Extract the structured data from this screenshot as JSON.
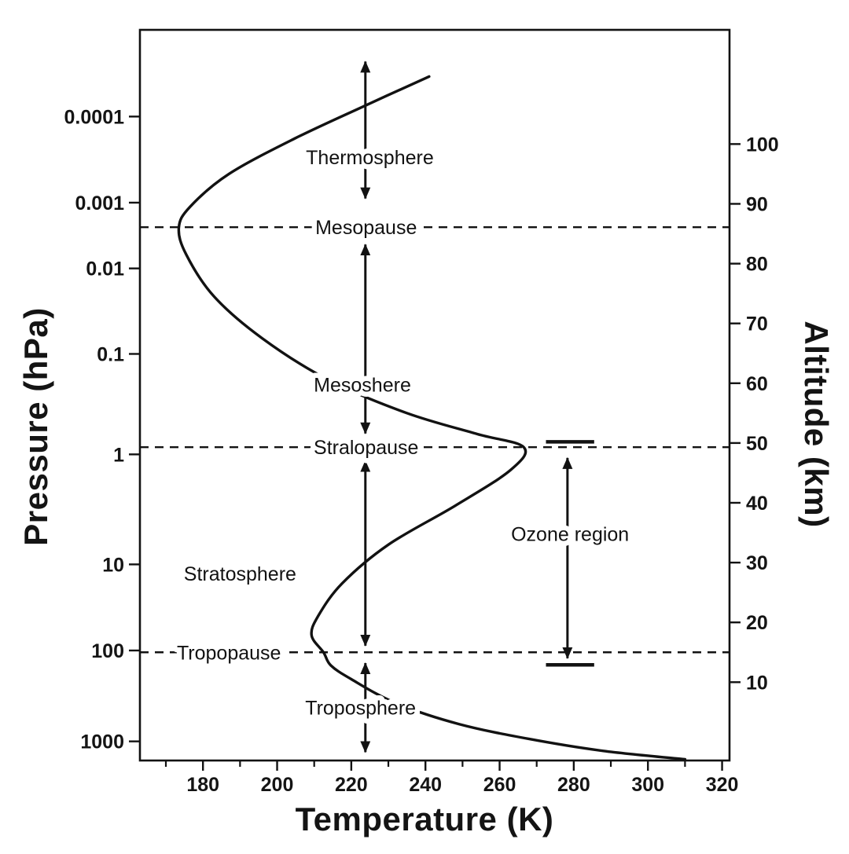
{
  "chart_data": {
    "type": "line",
    "title": "",
    "xlabel": "Temperature (K)",
    "ylabel_left": "Pressure (hPa)",
    "ylabel_right": "Altitude (km)",
    "xlim": [
      163,
      322
    ],
    "altitude_lim_km": [
      -3.1,
      119.1
    ],
    "grid": false,
    "x_ticks": [
      180,
      200,
      220,
      240,
      260,
      280,
      300,
      320
    ],
    "x_minor_ticks": [
      170,
      190,
      210,
      230,
      250,
      270,
      290,
      310
    ],
    "altitude_ticks_km": [
      10,
      20,
      30,
      40,
      50,
      60,
      70,
      80,
      90,
      100
    ],
    "pressure_ticks": [
      {
        "label": "0.0001",
        "altitude_km": 104.6
      },
      {
        "label": "0.001",
        "altitude_km": 90.2
      },
      {
        "label": "0.01",
        "altitude_km": 79.2
      },
      {
        "label": "0.1",
        "altitude_km": 64.9
      },
      {
        "label": "1",
        "altitude_km": 48.1
      },
      {
        "label": "10",
        "altitude_km": 29.7
      },
      {
        "label": "100",
        "altitude_km": 15.3
      },
      {
        "label": "1000",
        "altitude_km": 0.1
      }
    ],
    "profile_temperature_vs_altitude": [
      [
        241,
        111.3
      ],
      [
        224,
        106.5
      ],
      [
        205,
        101.0
      ],
      [
        187,
        95.0
      ],
      [
        176.5,
        89.5
      ],
      [
        173.5,
        86.0
      ],
      [
        175.5,
        81.5
      ],
      [
        183,
        74.5
      ],
      [
        196,
        67.5
      ],
      [
        214,
        60.5
      ],
      [
        235,
        55.0
      ],
      [
        254,
        51.5
      ],
      [
        266.5,
        49.3
      ],
      [
        263,
        45.5
      ],
      [
        248,
        39.5
      ],
      [
        230,
        33.0
      ],
      [
        217.5,
        26.5
      ],
      [
        211,
        21.0
      ],
      [
        209.3,
        17.8
      ],
      [
        212.5,
        15.0
      ],
      [
        214.5,
        12.8
      ],
      [
        220,
        10.5
      ],
      [
        232,
        6.5
      ],
      [
        249,
        3.0
      ],
      [
        268,
        0.5
      ],
      [
        288,
        -1.5
      ],
      [
        310,
        -2.9
      ]
    ],
    "pauses": [
      {
        "name": "Mesopause",
        "altitude_km": 86.1,
        "label_T": 224
      },
      {
        "name": "Stralopause",
        "altitude_km": 49.3,
        "label_T": 224
      },
      {
        "name": "Tropopause",
        "altitude_km": 15.0,
        "label_T": 187
      }
    ],
    "layers": [
      {
        "name": "Thermosphere",
        "arrow_T": 223.8,
        "arrow_alt_km": [
          90.9,
          113.8
        ],
        "label_T": 225,
        "label_alt_km": 97.8
      },
      {
        "name": "Mesoshere",
        "arrow_T": 223.8,
        "arrow_alt_km": [
          51.6,
          83.2
        ],
        "label_T": 223,
        "label_alt_km": 59.8
      },
      {
        "name": "Stratosphere",
        "arrow_T": 223.8,
        "arrow_alt_km": [
          16.1,
          47.0
        ],
        "label_T": 190,
        "label_alt_km": 28.2
      },
      {
        "name": "Troposphere",
        "arrow_T": 223.8,
        "arrow_alt_km": [
          -1.7,
          13.2
        ],
        "label_T": 222.5,
        "label_alt_km": 5.8
      }
    ],
    "ozone_region": {
      "label": "Ozone region",
      "label_T": 279,
      "label_alt_km": 34.8,
      "arrow_T": 278.3,
      "arrow_alt_km": [
        14.0,
        47.5
      ],
      "cap_T_range": [
        272.5,
        285.5
      ],
      "cap_altitudes_km": [
        50.2,
        12.9
      ]
    },
    "colors": {
      "ink": "#121212",
      "background": "#ffffff"
    }
  }
}
